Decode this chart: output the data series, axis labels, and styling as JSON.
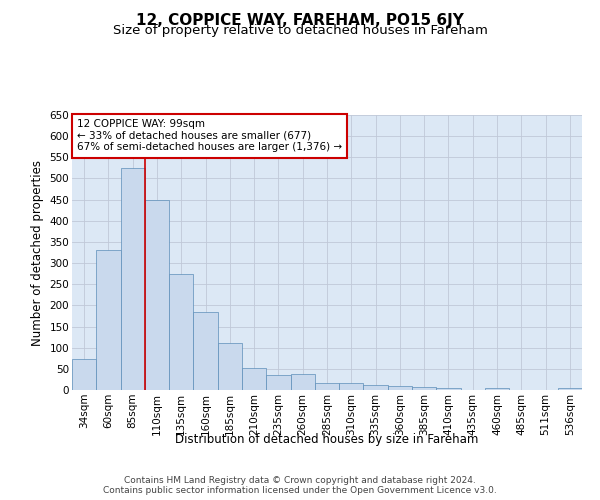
{
  "title": "12, COPPICE WAY, FAREHAM, PO15 6JY",
  "subtitle": "Size of property relative to detached houses in Fareham",
  "xlabel": "Distribution of detached houses by size in Fareham",
  "ylabel": "Number of detached properties",
  "categories": [
    "34sqm",
    "60sqm",
    "85sqm",
    "110sqm",
    "135sqm",
    "160sqm",
    "185sqm",
    "210sqm",
    "235sqm",
    "260sqm",
    "285sqm",
    "310sqm",
    "335sqm",
    "360sqm",
    "385sqm",
    "410sqm",
    "435sqm",
    "460sqm",
    "485sqm",
    "511sqm",
    "536sqm"
  ],
  "values": [
    73,
    330,
    525,
    450,
    275,
    185,
    112,
    52,
    35,
    37,
    17,
    16,
    12,
    9,
    7,
    5,
    1,
    5,
    1,
    1,
    5
  ],
  "bar_color": "#c9d9ed",
  "bar_edge_color": "#5b8db8",
  "grid_color": "#c0c8d8",
  "background_color": "#dce8f5",
  "vline_x_index": 2,
  "vline_color": "#cc0000",
  "annotation_text": "12 COPPICE WAY: 99sqm\n← 33% of detached houses are smaller (677)\n67% of semi-detached houses are larger (1,376) →",
  "annotation_box_color": "#ffffff",
  "annotation_box_edge_color": "#cc0000",
  "footer_text": "Contains HM Land Registry data © Crown copyright and database right 2024.\nContains public sector information licensed under the Open Government Licence v3.0.",
  "ylim": [
    0,
    650
  ],
  "yticks": [
    0,
    50,
    100,
    150,
    200,
    250,
    300,
    350,
    400,
    450,
    500,
    550,
    600,
    650
  ],
  "title_fontsize": 11,
  "subtitle_fontsize": 9.5,
  "axis_label_fontsize": 8.5,
  "tick_fontsize": 7.5,
  "annotation_fontsize": 7.5,
  "footer_fontsize": 6.5
}
